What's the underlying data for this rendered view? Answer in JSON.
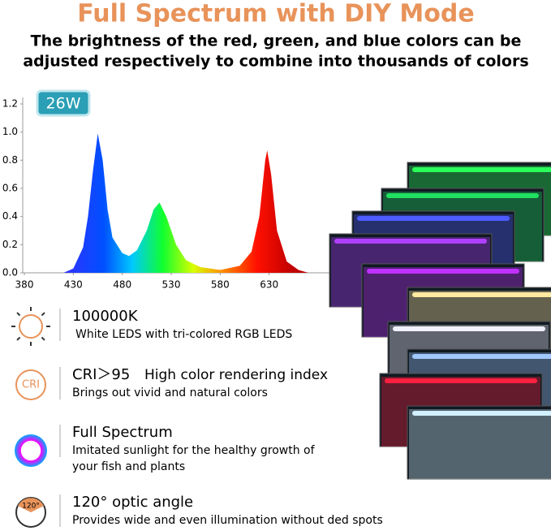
{
  "header": {
    "title": "Full Spectrum with DIY Mode",
    "subtitle_lines": [
      "The brightness of the red, green, and blue colors can be",
      "adjusted respectively to combine into thousands of colors"
    ]
  },
  "chart_data": {
    "type": "area",
    "badge": "26W",
    "x": [
      420,
      430,
      440,
      445,
      450,
      455,
      460,
      465,
      470,
      480,
      487,
      495,
      505,
      512,
      518,
      525,
      535,
      545,
      560,
      580,
      600,
      612,
      620,
      626,
      628,
      632,
      638,
      648,
      660,
      670
    ],
    "values": [
      0,
      0.03,
      0.18,
      0.4,
      0.72,
      0.99,
      0.8,
      0.45,
      0.25,
      0.14,
      0.12,
      0.16,
      0.3,
      0.45,
      0.5,
      0.4,
      0.2,
      0.09,
      0.04,
      0.02,
      0.05,
      0.15,
      0.4,
      0.8,
      0.87,
      0.7,
      0.3,
      0.08,
      0.02,
      0
    ],
    "xlim": [
      380,
      680
    ],
    "ylim": [
      0,
      1.2
    ],
    "xticks": [
      380,
      430,
      480,
      530,
      580,
      630
    ],
    "yticks": [
      {
        "value": 0,
        "label": "0.0"
      },
      0.2,
      0.4,
      0.6,
      0.8,
      {
        "value": 1,
        "label": "1.0"
      },
      1.2
    ]
  },
  "features": [
    {
      "icon": "",
      "title": "100000K",
      "lines": [
        "White LEDS with tri-colored RGB LEDS"
      ]
    },
    {
      "icon": "CRI",
      "title": "CRI＞95",
      "extra": "High color rendering index",
      "lines": [
        "Brings out vivid and natural colors"
      ]
    },
    {
      "icon": "",
      "title": "Full Spectrum",
      "lines": [
        "Imitated sunlight for the healthy growth of",
        "your fish and plants"
      ]
    },
    {
      "icon": "120°",
      "title": "120° optic angle",
      "lines": [
        "Provides wide and even illumination without ded spots"
      ]
    }
  ]
}
